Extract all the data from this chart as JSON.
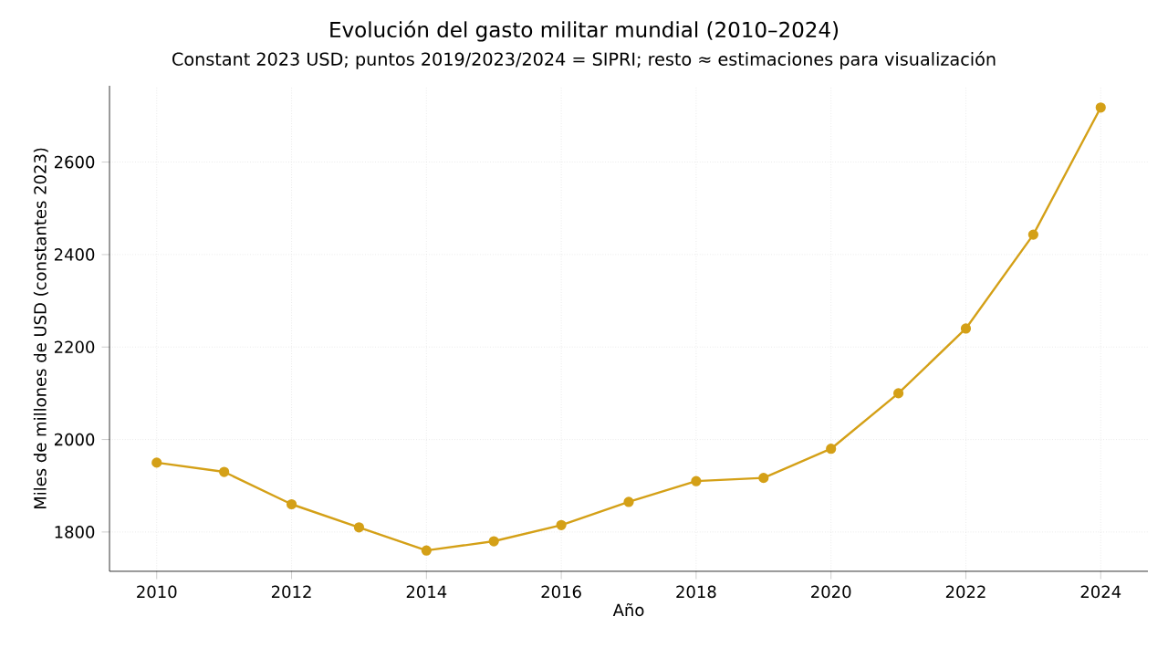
{
  "chart_data": {
    "type": "line",
    "title": "Evolución del gasto militar mundial (2010–2024)",
    "subtitle": "Constant 2023 USD; puntos 2019/2023/2024 = SIPRI; resto ≈ estimaciones para visualización",
    "xlabel": "Año",
    "ylabel": "Miles de millones de USD (constantes 2023)",
    "x": [
      2010,
      2011,
      2012,
      2013,
      2014,
      2015,
      2016,
      2017,
      2018,
      2019,
      2020,
      2021,
      2022,
      2023,
      2024
    ],
    "values": [
      1950,
      1930,
      1860,
      1810,
      1760,
      1780,
      1815,
      1865,
      1910,
      1917,
      1980,
      2100,
      2240,
      2443,
      2718
    ],
    "color": "#d4a017",
    "marker": "circle",
    "line_style": "solid",
    "grid": true,
    "xlim": [
      2009.3,
      2024.7
    ],
    "ylim": [
      1715,
      2765
    ],
    "xticks": [
      2010,
      2012,
      2014,
      2016,
      2018,
      2020,
      2022,
      2024
    ],
    "yticks": [
      1800,
      2000,
      2200,
      2400,
      2600
    ]
  }
}
